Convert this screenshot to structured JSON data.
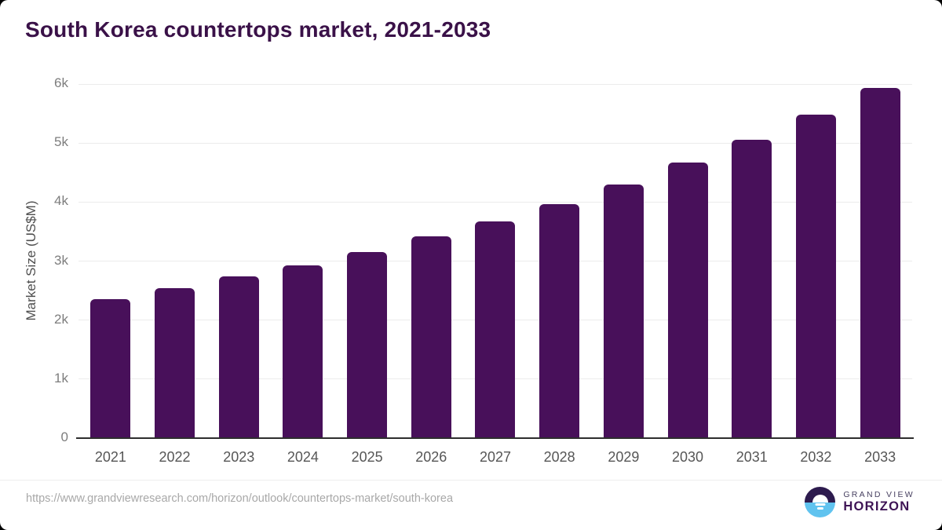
{
  "page": {
    "title": "South Korea countertops market, 2021-2033"
  },
  "chart_data": {
    "type": "bar",
    "title": "South Korea countertops market, 2021-2033",
    "categories": [
      "2021",
      "2022",
      "2023",
      "2024",
      "2025",
      "2026",
      "2027",
      "2028",
      "2029",
      "2030",
      "2031",
      "2032",
      "2033"
    ],
    "values": [
      2360,
      2540,
      2740,
      2930,
      3150,
      3420,
      3670,
      3970,
      4300,
      4670,
      5050,
      5480,
      5930
    ],
    "xlabel": "",
    "ylabel": "Market Size (US$M)",
    "ylim": [
      0,
      6000
    ],
    "yticks": [
      0,
      1000,
      2000,
      3000,
      4000,
      5000,
      6000
    ],
    "ytick_labels": [
      "0",
      "1k",
      "2k",
      "3k",
      "4k",
      "5k",
      "6k"
    ],
    "grid": true,
    "legend": "none",
    "bar_color": "#48105a"
  },
  "footer": {
    "source_url": "https://www.grandviewresearch.com/horizon/outlook/countertops-market/south-korea",
    "logo": {
      "line1": "GRAND VIEW",
      "line2": "HORIZON"
    }
  },
  "colors": {
    "bar": "#48105a",
    "title_text": "#3a1148",
    "gridline": "#ececec",
    "axis_line": "#2e2e2e",
    "tick_text": "#7d7d7d",
    "x_label_text": "#565656",
    "url_text": "#a8a8a8",
    "logo_dark": "#2d1b4e",
    "logo_blue": "#60c3ef"
  }
}
